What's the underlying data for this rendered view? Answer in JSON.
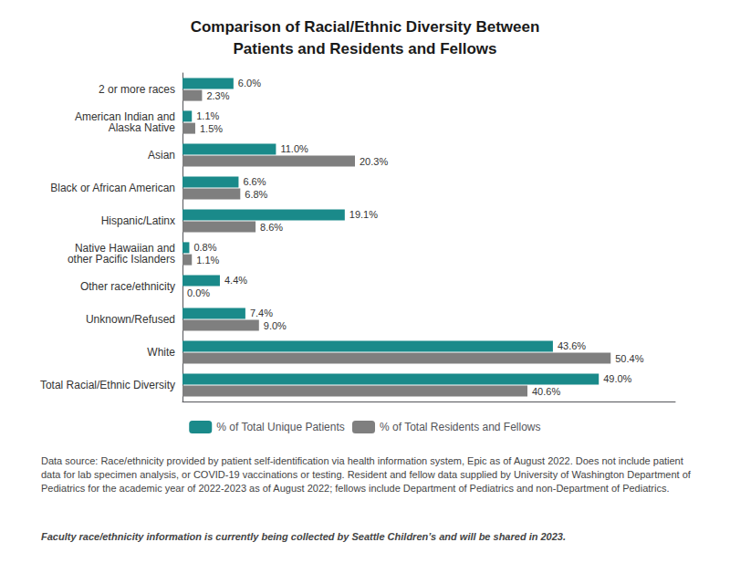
{
  "chart_data": {
    "type": "bar",
    "orientation": "horizontal",
    "title": "Comparison of Racial/Ethnic Diversity Between\nPatients and Residents and Fellows",
    "categories": [
      "2 or more races",
      "American Indian and\nAlaska Native",
      "Asian",
      "Black or African American",
      "Hispanic/Latinx",
      "Native Hawaiian and\nother Pacific Islanders",
      "Other race/ethnicity",
      "Unknown/Refused",
      "White",
      "Total Racial/Ethnic Diversity"
    ],
    "series": [
      {
        "name": "% of Total Unique Patients",
        "color": "#1a8a8a",
        "values": [
          6.0,
          1.1,
          11.0,
          6.6,
          19.1,
          0.8,
          4.4,
          7.4,
          43.6,
          49.0
        ],
        "value_labels": [
          "6.0%",
          "1.1%",
          "11.0%",
          "6.6%",
          "19.1%",
          "0.8%",
          "4.4%",
          "7.4%",
          "43.6%",
          "49.0%"
        ]
      },
      {
        "name": "% of Total Residents and Fellows",
        "color": "#7f7f7f",
        "values": [
          2.3,
          1.5,
          20.3,
          6.8,
          8.6,
          1.1,
          0.0,
          9.0,
          50.4,
          40.6
        ],
        "value_labels": [
          "2.3%",
          "1.5%",
          "20.3%",
          "6.8%",
          "8.6%",
          "1.1%",
          "0.0%",
          "9.0%",
          "50.4%",
          "40.6%"
        ]
      }
    ],
    "xlim": [
      0,
      58
    ],
    "data_labels": true,
    "tick_labels": "y",
    "grid": false,
    "legend": "bottom",
    "annotations": [
      "Data source: Race/ethnicity provided by patient self-identification via health information system, Epic as of August 2022. Does not include patient data for lab specimen analysis, or COVID-19 vaccinations or testing. Resident and fellow data supplied by University of Washington Department of Pediatrics for the academic year of 2022-2023 as of August 2022; fellows include Department of Pediatrics and non-Department of Pediatrics.",
      "Faculty race/ethnicity information is currently being collected by Seattle Children’s and will be shared in 2023."
    ]
  }
}
